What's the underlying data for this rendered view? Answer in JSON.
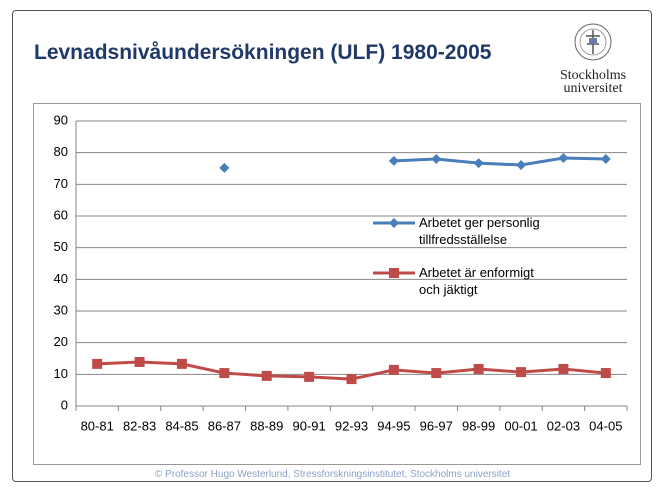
{
  "title": "Levnadsnivåundersökningen (ULF) 1980-2005",
  "logo_text": "Stockholms universitet",
  "footer": "© Professor Hugo Westerlund, Stressforskningsinstitutet, Stockholms universitet",
  "chart_data": {
    "type": "line",
    "categories": [
      "80-81",
      "82-83",
      "84-85",
      "86-87",
      "88-89",
      "90-91",
      "92-93",
      "94-95",
      "96-97",
      "98-99",
      "00-01",
      "02-03",
      "04-05"
    ],
    "series": [
      {
        "name": "Arbetet ger personlig tillfredsställelse",
        "color": "#4a7ebb",
        "marker": "diamond",
        "values": [
          null,
          null,
          null,
          75.2,
          null,
          null,
          null,
          77.4,
          78,
          76.7,
          76.1,
          78.3,
          78
        ]
      },
      {
        "name": "Arbetet är enformigt och jäktigt",
        "color": "#be4b48",
        "marker": "square",
        "values": [
          13.3,
          13.9,
          13.3,
          10.4,
          9.5,
          9.2,
          8.5,
          11.4,
          10.4,
          11.7,
          10.7,
          11.7,
          10.4
        ]
      }
    ],
    "ylim": [
      0,
      90
    ],
    "yticks": [
      0,
      10,
      20,
      30,
      40,
      50,
      60,
      70,
      80,
      90
    ],
    "grid": true
  }
}
